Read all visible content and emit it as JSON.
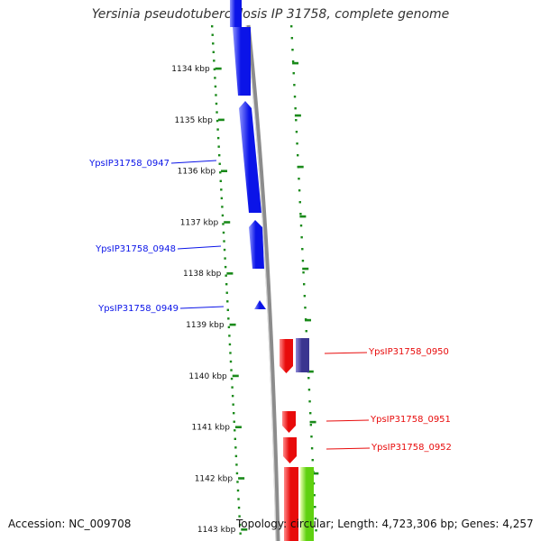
{
  "title": "Yersinia pseudotuberculosis IP 31758, complete genome",
  "accession": "Accession: NC_009708",
  "topology": "Topology: circular; Length: 4,723,306 bp; Genes: 4,257",
  "colors": {
    "forward_gene": "#0b14e8",
    "reverse_gene": "#e80b0b",
    "reverse_gene_alt": "#3a3590",
    "rna_gene": "#5fd10f",
    "tick": "#1a8a1a",
    "backbone": "#8c8c8c"
  },
  "scale_labels": [
    "1134 kbp",
    "1135 kbp",
    "1136 kbp",
    "1137 kbp",
    "1138 kbp",
    "1139 kbp",
    "1140 kbp",
    "1141 kbp",
    "1142 kbp",
    "1143 kbp"
  ],
  "gene_labels": [
    {
      "text": "YpsIP31758_0947",
      "strand": "forward"
    },
    {
      "text": "YpsIP31758_0948",
      "strand": "forward"
    },
    {
      "text": "YpsIP31758_0949",
      "strand": "forward"
    },
    {
      "text": "YpsIP31758_0950",
      "strand": "reverse"
    },
    {
      "text": "YpsIP31758_0951",
      "strand": "reverse"
    },
    {
      "text": "YpsIP31758_0952",
      "strand": "reverse"
    }
  ]
}
